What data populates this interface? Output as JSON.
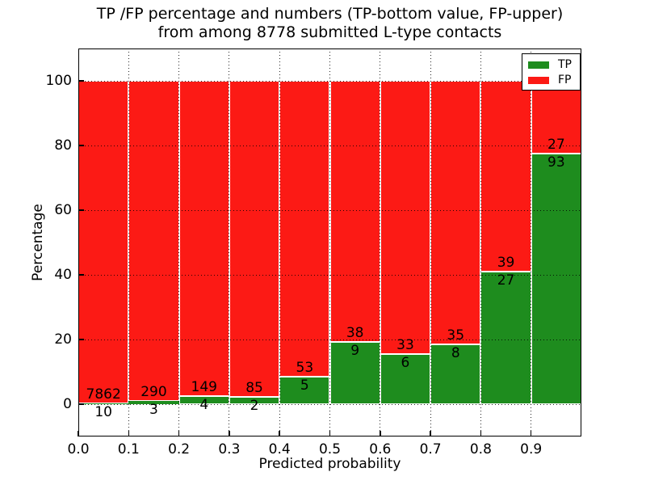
{
  "chart_data": {
    "type": "bar",
    "mode": "stacked-percentage",
    "title_line1": "TP /FP percentage and numbers (TP-bottom value, FP-upper)",
    "title_line2": "from among 8778 submitted L-type contacts",
    "xlabel": "Predicted probability",
    "ylabel": "Percentage",
    "xlim": [
      0.0,
      1.0
    ],
    "ylim": [
      -10,
      110
    ],
    "x_tick_values": [
      0.0,
      0.1,
      0.2,
      0.3,
      0.4,
      0.5,
      0.6,
      0.7,
      0.8,
      0.9
    ],
    "x_tick_labels": [
      "0.0",
      "0.1",
      "0.2",
      "0.3",
      "0.4",
      "0.5",
      "0.6",
      "0.7",
      "0.8",
      "0.9"
    ],
    "y_tick_values": [
      0,
      20,
      40,
      60,
      80,
      100
    ],
    "y_tick_labels": [
      "0",
      "20",
      "40",
      "60",
      "80",
      "100"
    ],
    "grid": {
      "style": "dotted",
      "color": "#000000"
    },
    "bins": [
      "0.0-0.1",
      "0.1-0.2",
      "0.2-0.3",
      "0.3-0.4",
      "0.4-0.5",
      "0.5-0.6",
      "0.6-0.7",
      "0.7-0.8",
      "0.8-0.9",
      "0.9-1.0"
    ],
    "series": [
      {
        "name": "TP",
        "color": "#1e8c1e",
        "counts": [
          10,
          3,
          4,
          2,
          5,
          9,
          6,
          8,
          27,
          93
        ],
        "pct": [
          0.13,
          1.02,
          2.61,
          2.3,
          8.62,
          19.15,
          15.38,
          18.6,
          40.91,
          77.5
        ]
      },
      {
        "name": "FP",
        "color": "#fc1a15",
        "counts": [
          7862,
          290,
          149,
          85,
          53,
          38,
          33,
          35,
          39,
          27
        ],
        "pct": [
          99.87,
          98.98,
          97.39,
          97.7,
          91.38,
          80.85,
          84.62,
          81.4,
          59.09,
          22.5
        ]
      }
    ],
    "legend": {
      "position": "upper-right",
      "entries": [
        {
          "label": "TP",
          "color": "#1e8c1e"
        },
        {
          "label": "FP",
          "color": "#fc1a15"
        }
      ]
    }
  }
}
